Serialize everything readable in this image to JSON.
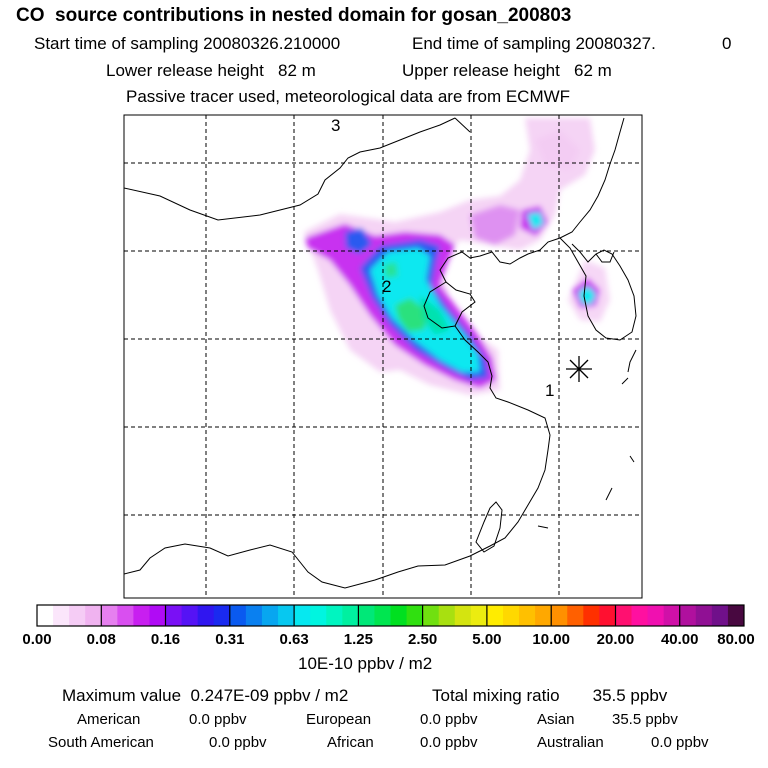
{
  "header": {
    "title": "CO  source contributions in nested domain for gosan_200803",
    "start": "Start time of sampling 20080326.210000",
    "end": "End time of sampling 20080327.",
    "end_suffix": "0",
    "lower": "Lower release height   82 m",
    "upper": "Upper release height   62 m",
    "tracer": "Passive tracer used, meteorological data are from ECMWF"
  },
  "map": {
    "labels": [
      "3",
      "2",
      "1"
    ],
    "station_marker": "asterisk-icon"
  },
  "colorbar": {
    "ticks": [
      "0.00",
      "0.08",
      "0.16",
      "0.31",
      "0.63",
      "1.25",
      "2.50",
      "5.00",
      "10.00",
      "20.00",
      "40.00",
      "80.00"
    ],
    "unit": "10E-10 ppbv / m2",
    "colors": [
      "#ffffff",
      "#fbe6fb",
      "#f5ccf5",
      "#f0b3f0",
      "#e680ef",
      "#d94ff0",
      "#c81ff0",
      "#b00bf5",
      "#7a10f5",
      "#5513f5",
      "#3016f0",
      "#1a2af0",
      "#0a5af0",
      "#0a80f0",
      "#08a6f0",
      "#07c8f0",
      "#06e8f0",
      "#00f5e0",
      "#00f5c0",
      "#00f0a0",
      "#00e878",
      "#00e650",
      "#00e020",
      "#30e010",
      "#70e010",
      "#a8e010",
      "#d4e410",
      "#ecec10",
      "#ffec00",
      "#ffd800",
      "#ffc000",
      "#ffa800",
      "#ff9000",
      "#ff6000",
      "#ff3000",
      "#ff1030",
      "#ff1070",
      "#ff10a0",
      "#f010b0",
      "#d010a8",
      "#b0109e",
      "#901094",
      "#70108a",
      "#480840"
    ]
  },
  "footer": {
    "max_value": "Maximum value  0.247E-09 ppbv / m2",
    "total": "Total mixing ratio       35.5 ppbv",
    "regions": [
      {
        "name": "American",
        "value": "0.0 ppbv"
      },
      {
        "name": "European",
        "value": "0.0 ppbv"
      },
      {
        "name": "Asian",
        "value": "35.5 ppbv"
      },
      {
        "name": "South American",
        "value": "0.0 ppbv"
      },
      {
        "name": "African",
        "value": "0.0 ppbv"
      },
      {
        "name": "Australian",
        "value": "0.0 ppbv"
      }
    ]
  }
}
